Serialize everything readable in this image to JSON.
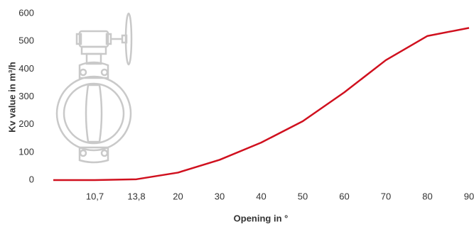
{
  "chart_data": {
    "type": "line",
    "x_label": "Opening in °",
    "y_label": "Kv value in m³/h",
    "categories": [
      null,
      "10,7",
      "13,8",
      "20",
      "30",
      "40",
      "50",
      "60",
      "70",
      "80",
      "90"
    ],
    "values": [
      0,
      0,
      3,
      27,
      73,
      135,
      212,
      316,
      432,
      519,
      548
    ],
    "color": "#d0101e",
    "ylim": [
      0,
      600
    ],
    "yticks": [
      0,
      100,
      200,
      300,
      400,
      500,
      600
    ]
  }
}
